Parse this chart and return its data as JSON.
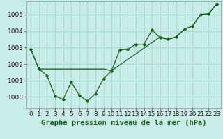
{
  "title": "Graphe pression niveau de la mer (hPa)",
  "bg_color": "#c8ece8",
  "grid_color": "#a0d4d0",
  "line_color": "#1a5c1a",
  "xlim": [
    -0.5,
    23.5
  ],
  "ylim": [
    999.3,
    1005.8
  ],
  "yticks": [
    1000,
    1001,
    1002,
    1003,
    1004,
    1005
  ],
  "xticks": [
    0,
    1,
    2,
    3,
    4,
    5,
    6,
    7,
    8,
    9,
    10,
    11,
    12,
    13,
    14,
    15,
    16,
    17,
    18,
    19,
    20,
    21,
    22,
    23
  ],
  "series1_x": [
    0,
    1,
    2,
    3,
    4,
    5,
    6,
    7,
    8,
    9,
    10,
    11,
    12,
    13,
    14,
    15,
    16,
    17,
    18,
    19,
    20,
    21,
    22,
    23
  ],
  "series1_y": [
    1002.9,
    1001.7,
    1001.3,
    1000.05,
    999.85,
    1000.9,
    1000.1,
    999.75,
    1000.2,
    1001.1,
    1001.6,
    1002.85,
    1002.9,
    1003.2,
    1003.2,
    1004.05,
    1003.6,
    1003.5,
    1003.65,
    1004.1,
    1004.3,
    1005.0,
    1005.05,
    1005.65
  ],
  "series2_x": [
    0,
    1,
    2,
    9,
    10,
    15,
    16,
    17,
    18,
    19,
    20,
    21,
    22,
    23
  ],
  "series2_y": [
    1002.9,
    1001.7,
    1001.7,
    1001.7,
    1001.6,
    1003.3,
    1003.65,
    1003.5,
    1003.65,
    1004.1,
    1004.3,
    1005.0,
    1005.05,
    1005.65
  ],
  "tick_fontsize": 6.5,
  "title_fontsize": 7.5,
  "title_color": "#1a5c1a",
  "title_bg": "#a0c8a0"
}
